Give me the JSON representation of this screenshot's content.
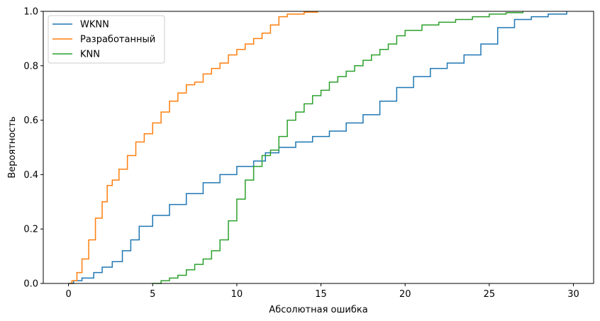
{
  "chart_data": {
    "type": "line",
    "title": "",
    "xlabel": "Абсолютная ошибка",
    "ylabel": "Вероятность",
    "xlim": [
      -1.5,
      31.2
    ],
    "ylim": [
      0,
      1
    ],
    "x_ticks": [
      "0",
      "5",
      "10",
      "15",
      "20",
      "25",
      "30"
    ],
    "x_tick_values": [
      0,
      5,
      10,
      15,
      20,
      25,
      30
    ],
    "y_ticks": [
      "0.0",
      "0.2",
      "0.4",
      "0.6",
      "0.8",
      "1.0"
    ],
    "y_tick_values": [
      0,
      0.2,
      0.4,
      0.6,
      0.8,
      1.0
    ],
    "grid": false,
    "legend_position": "top-left",
    "series": [
      {
        "name": "WKNN",
        "color": "#1f77b4",
        "points": [
          [
            0,
            0
          ],
          [
            0.3,
            0.01
          ],
          [
            0.8,
            0.02
          ],
          [
            1.5,
            0.04
          ],
          [
            2.0,
            0.06
          ],
          [
            2.6,
            0.08
          ],
          [
            3.2,
            0.12
          ],
          [
            3.7,
            0.16
          ],
          [
            4.2,
            0.21
          ],
          [
            5.0,
            0.25
          ],
          [
            6.0,
            0.29
          ],
          [
            7.0,
            0.33
          ],
          [
            8.0,
            0.37
          ],
          [
            9.0,
            0.4
          ],
          [
            10.0,
            0.43
          ],
          [
            11.0,
            0.45
          ],
          [
            11.7,
            0.48
          ],
          [
            12.5,
            0.5
          ],
          [
            13.5,
            0.52
          ],
          [
            14.5,
            0.54
          ],
          [
            15.5,
            0.56
          ],
          [
            16.5,
            0.59
          ],
          [
            17.5,
            0.62
          ],
          [
            18.5,
            0.67
          ],
          [
            19.5,
            0.72
          ],
          [
            20.5,
            0.76
          ],
          [
            21.5,
            0.79
          ],
          [
            22.5,
            0.81
          ],
          [
            23.5,
            0.84
          ],
          [
            24.5,
            0.88
          ],
          [
            25.5,
            0.94
          ],
          [
            26.5,
            0.97
          ],
          [
            27.5,
            0.98
          ],
          [
            28.5,
            0.99
          ],
          [
            29.6,
            1.0
          ]
        ]
      },
      {
        "name": "Разработанный",
        "color": "#ff7f0e",
        "points": [
          [
            0,
            0
          ],
          [
            0.2,
            0.01
          ],
          [
            0.5,
            0.04
          ],
          [
            0.8,
            0.09
          ],
          [
            1.2,
            0.16
          ],
          [
            1.6,
            0.24
          ],
          [
            2.0,
            0.3
          ],
          [
            2.3,
            0.36
          ],
          [
            2.6,
            0.38
          ],
          [
            3.0,
            0.42
          ],
          [
            3.5,
            0.47
          ],
          [
            4.0,
            0.52
          ],
          [
            4.5,
            0.55
          ],
          [
            5.0,
            0.59
          ],
          [
            5.5,
            0.63
          ],
          [
            6.0,
            0.67
          ],
          [
            6.5,
            0.7
          ],
          [
            7.0,
            0.73
          ],
          [
            7.5,
            0.74
          ],
          [
            8.0,
            0.77
          ],
          [
            8.5,
            0.79
          ],
          [
            9.0,
            0.81
          ],
          [
            9.5,
            0.84
          ],
          [
            10.0,
            0.86
          ],
          [
            10.5,
            0.88
          ],
          [
            11.0,
            0.9
          ],
          [
            11.5,
            0.92
          ],
          [
            12.0,
            0.95
          ],
          [
            12.5,
            0.98
          ],
          [
            13.0,
            0.99
          ],
          [
            14.0,
            0.997
          ],
          [
            14.8,
            1.0
          ]
        ]
      },
      {
        "name": "KNN",
        "color": "#2ca02c",
        "points": [
          [
            5.0,
            0.0
          ],
          [
            5.5,
            0.01
          ],
          [
            6.0,
            0.02
          ],
          [
            6.5,
            0.03
          ],
          [
            7.0,
            0.05
          ],
          [
            7.5,
            0.07
          ],
          [
            8.0,
            0.09
          ],
          [
            8.5,
            0.12
          ],
          [
            9.0,
            0.16
          ],
          [
            9.5,
            0.23
          ],
          [
            10.0,
            0.31
          ],
          [
            10.5,
            0.38
          ],
          [
            11.0,
            0.43
          ],
          [
            11.5,
            0.47
          ],
          [
            12.0,
            0.49
          ],
          [
            12.5,
            0.54
          ],
          [
            13.0,
            0.6
          ],
          [
            13.5,
            0.63
          ],
          [
            14.0,
            0.66
          ],
          [
            14.5,
            0.69
          ],
          [
            15.0,
            0.71
          ],
          [
            15.5,
            0.74
          ],
          [
            16.0,
            0.76
          ],
          [
            16.5,
            0.78
          ],
          [
            17.0,
            0.8
          ],
          [
            17.5,
            0.82
          ],
          [
            18.0,
            0.84
          ],
          [
            18.5,
            0.86
          ],
          [
            19.0,
            0.88
          ],
          [
            19.5,
            0.91
          ],
          [
            20.0,
            0.93
          ],
          [
            21.0,
            0.95
          ],
          [
            22.0,
            0.96
          ],
          [
            23.0,
            0.97
          ],
          [
            24.0,
            0.98
          ],
          [
            25.0,
            0.99
          ],
          [
            26.0,
            0.995
          ],
          [
            27.0,
            1.0
          ]
        ]
      }
    ]
  }
}
